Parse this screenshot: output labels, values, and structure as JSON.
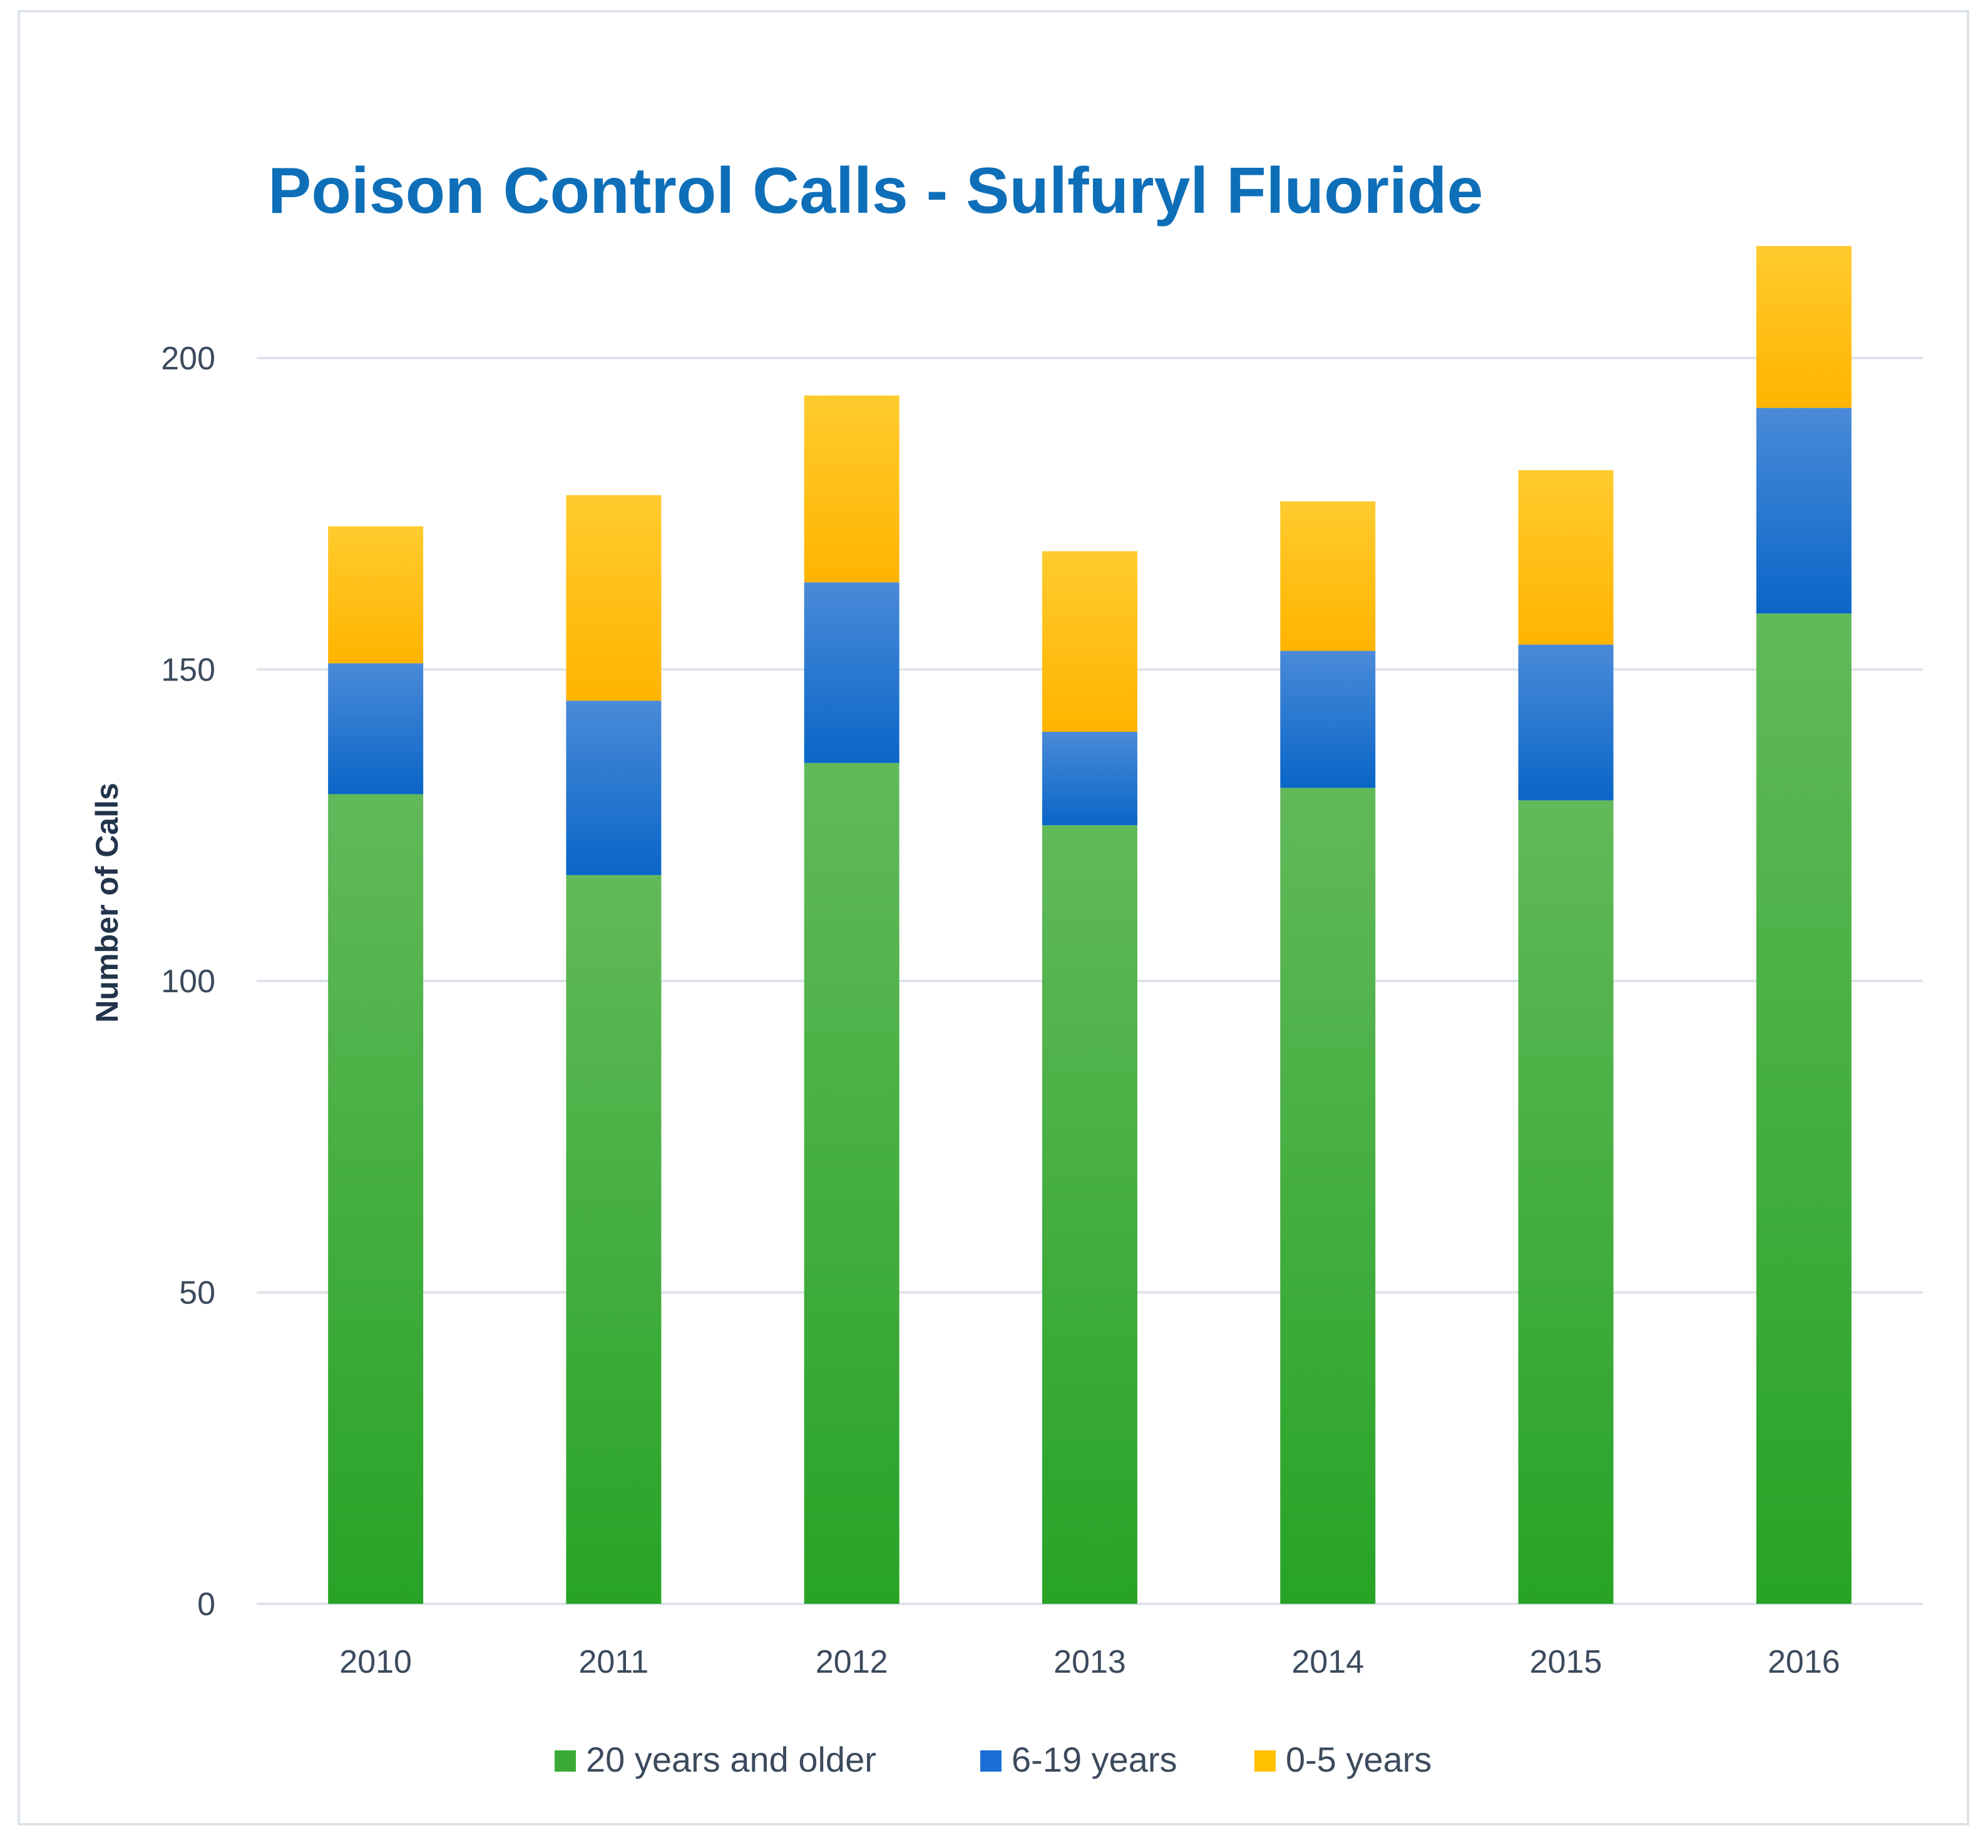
{
  "chart_data": {
    "type": "bar",
    "stacked": true,
    "title": "Poison Control Calls - Sulfuryl Fluoride",
    "xlabel": "",
    "ylabel": "Number of Calls",
    "categories": [
      "2010",
      "2011",
      "2012",
      "2013",
      "2014",
      "2015",
      "2016"
    ],
    "series": [
      {
        "name": "20 years and older",
        "values": [
          130,
          117,
          135,
          125,
          131,
          129,
          159
        ],
        "color": "#3aaa35"
      },
      {
        "name": "6-19 years",
        "values": [
          21,
          28,
          29,
          15,
          22,
          25,
          33
        ],
        "color": "#1a6fd4"
      },
      {
        "name": "0-5 years",
        "values": [
          22,
          33,
          30,
          29,
          24,
          28,
          26
        ],
        "color": "#ffc000"
      }
    ],
    "ylim": [
      0,
      200
    ],
    "yticks": [
      "0",
      "50",
      "100",
      "150",
      "200"
    ],
    "grid": true,
    "legend": "bottom"
  },
  "colors": {
    "title": "#0e6fb8",
    "axis_text": "#3b4a5c",
    "ylabel": "#22344a",
    "grid": "#dde3ea"
  }
}
